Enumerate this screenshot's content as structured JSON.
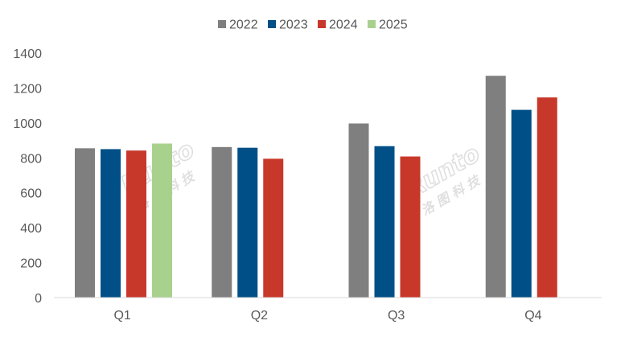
{
  "chart_data": {
    "type": "bar",
    "categories": [
      "Q1",
      "Q2",
      "Q3",
      "Q4"
    ],
    "series": [
      {
        "name": "2022",
        "color": "#7f7f7f",
        "values": [
          855,
          862,
          997,
          1270
        ]
      },
      {
        "name": "2023",
        "color": "#004f86",
        "values": [
          850,
          858,
          867,
          1075
        ]
      },
      {
        "name": "2024",
        "color": "#c8382a",
        "values": [
          842,
          795,
          808,
          1146
        ]
      },
      {
        "name": "2025",
        "color": "#a9d18e",
        "values": [
          882,
          null,
          null,
          null
        ]
      }
    ],
    "ylim": [
      0,
      1400
    ],
    "yticks": [
      "0",
      "200",
      "400",
      "600",
      "800",
      "1000",
      "1200",
      "1400"
    ],
    "grid": false,
    "legend_position": "top-center"
  },
  "watermark": {
    "brand": "Runto",
    "chinese": "洛 图 科 技",
    "color": "#dcdcdc"
  }
}
